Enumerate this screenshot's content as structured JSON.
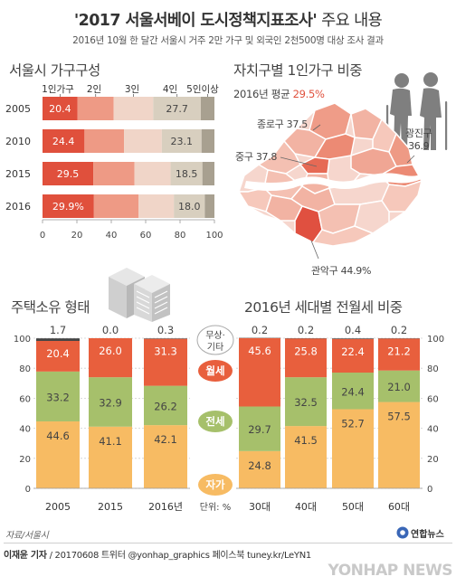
{
  "header": {
    "title_main": "'2017 서울서베이 도시정책지표조사'",
    "title_rest": " 주요 내용",
    "subtitle": "2016년 10월 한 달간 서울시 거주 2만 가구 및 외국인 2천500명 대상 조사 결과"
  },
  "household": {
    "title": "서울시 가구구성",
    "legend": [
      "1인가구",
      "2인",
      "3인",
      "4인",
      "5인이상"
    ],
    "colors": [
      "#e0503c",
      "#ee9a85",
      "#f0d5c8",
      "#d8cfbf",
      "#a8a090"
    ],
    "axis_ticks": [
      "0",
      "20",
      "40",
      "60",
      "80",
      "100"
    ]
  },
  "district": {
    "title": "자치구별 1인가구 비중",
    "avg_label": "2016년 평균 ",
    "avg_value": "29.5%",
    "labels": [
      {
        "name": "종로구",
        "value": "37.5"
      },
      {
        "name": "광진구",
        "value": "36.9"
      },
      {
        "name": "중구",
        "value": "37.8"
      },
      {
        "name": "관악구",
        "value": "44.9%"
      }
    ]
  },
  "housing": {
    "title": "주택소유 형태"
  },
  "rent": {
    "title": "2016년 세대별 전월세 비중"
  },
  "middle": {
    "labels": [
      "무상·\n기타",
      "월세",
      "전세",
      "자가"
    ],
    "unit": "단위: %"
  },
  "footer": {
    "source": "자료/서울시",
    "credit": "이재윤 기자",
    "credit_rest": " / 20170608   트위터 @yonhap_graphics  페이스북 tuney.kr/LeYN1",
    "logo": "연합뉴스",
    "watermark": "YONHAP NEWS"
  },
  "chart_data": [
    {
      "type": "bar",
      "orientation": "horizontal",
      "stacked": true,
      "title": "서울시 가구구성",
      "categories": [
        "2005",
        "2010",
        "2015",
        "2016"
      ],
      "series": [
        {
          "name": "1인가구",
          "values": [
            20.4,
            24.4,
            29.5,
            29.9
          ]
        },
        {
          "name": "2인",
          "values": [
            21.0,
            23.0,
            24.0,
            26.0
          ]
        },
        {
          "name": "3인",
          "values": [
            23.0,
            22.0,
            21.0,
            20.5
          ]
        },
        {
          "name": "4인",
          "values": [
            27.7,
            23.1,
            18.5,
            18.0
          ]
        },
        {
          "name": "5인이상",
          "values": [
            7.9,
            7.5,
            7.0,
            5.6
          ]
        }
      ],
      "data_labels": {
        "1인가구": [
          "20.4",
          "24.4",
          "29.5",
          "29.9%"
        ],
        "4인": [
          "27.7",
          "23.1",
          "18.5",
          "18.0"
        ]
      },
      "xlim": [
        0,
        100
      ]
    },
    {
      "type": "bar",
      "stacked": true,
      "title": "주택소유 형태",
      "categories": [
        "2005",
        "2015",
        "2016년"
      ],
      "series": [
        {
          "name": "자가",
          "values": [
            44.6,
            41.1,
            42.1
          ]
        },
        {
          "name": "전세",
          "values": [
            33.2,
            32.9,
            26.2
          ]
        },
        {
          "name": "월세",
          "values": [
            20.4,
            26.0,
            31.3
          ]
        },
        {
          "name": "무상·기타",
          "values": [
            1.7,
            0.0,
            0.3
          ]
        }
      ],
      "ylim": [
        0,
        100
      ],
      "yticks": [
        0,
        20,
        40,
        60,
        80,
        100
      ]
    },
    {
      "type": "bar",
      "stacked": true,
      "title": "2016년 세대별 전월세 비중",
      "categories": [
        "30대",
        "40대",
        "50대",
        "60대"
      ],
      "series": [
        {
          "name": "자가",
          "values": [
            24.8,
            41.5,
            52.7,
            57.5
          ]
        },
        {
          "name": "전세",
          "values": [
            29.7,
            32.5,
            24.4,
            21.0
          ]
        },
        {
          "name": "월세",
          "values": [
            45.6,
            25.8,
            22.4,
            21.2
          ]
        },
        {
          "name": "무상·기타",
          "values": [
            0.2,
            0.2,
            0.4,
            0.2
          ]
        }
      ],
      "ylim": [
        0,
        100
      ],
      "yticks": [
        0,
        20,
        40,
        60,
        80,
        100
      ]
    }
  ]
}
